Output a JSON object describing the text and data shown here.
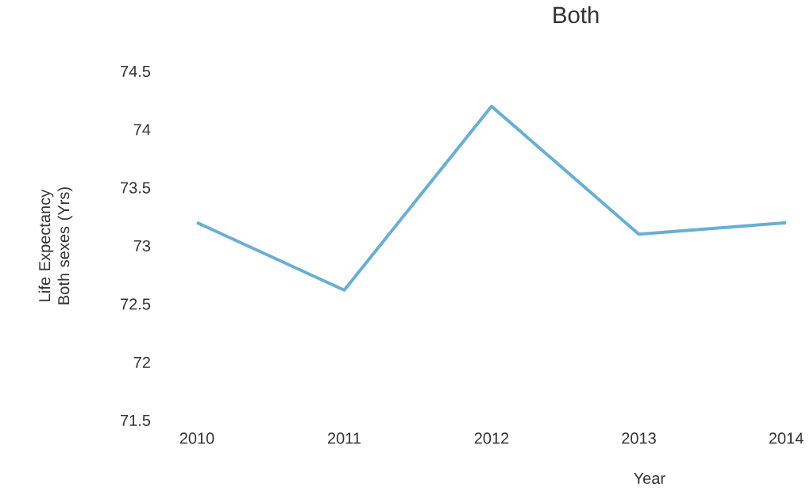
{
  "chart_data": {
    "type": "line",
    "title": "Both",
    "xlabel": "Year",
    "ylabel": "Life Expectancy Both sexes  (Yrs)",
    "categories": [
      "2010",
      "2011",
      "2012",
      "2013",
      "2014"
    ],
    "series": [
      {
        "color": "#6aaed3",
        "values": [
          73.2,
          72.62,
          74.2,
          73.1,
          73.2
        ]
      }
    ],
    "ylim": [
      71.5,
      74.5
    ],
    "yticks": [
      71.5,
      72,
      72.5,
      73,
      73.5,
      74,
      74.5
    ],
    "marker": "none",
    "line_style": "solid"
  }
}
